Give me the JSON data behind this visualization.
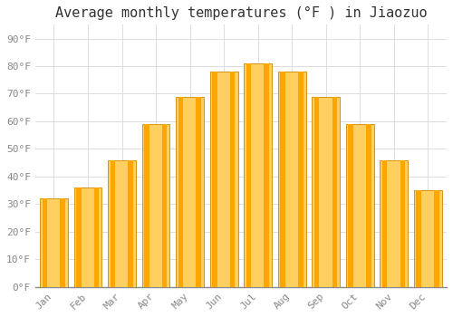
{
  "title": "Average monthly temperatures (°F ) in Jiaozuo",
  "months": [
    "Jan",
    "Feb",
    "Mar",
    "Apr",
    "May",
    "Jun",
    "Jul",
    "Aug",
    "Sep",
    "Oct",
    "Nov",
    "Dec"
  ],
  "values": [
    32,
    36,
    46,
    59,
    69,
    78,
    81,
    78,
    69,
    59,
    46,
    35
  ],
  "bar_color_face": "#FFA500",
  "bar_color_light": "#FFD060",
  "bar_color_edge": "#CC8800",
  "background_color": "#FFFFFF",
  "grid_color": "#DDDDDD",
  "ylim": [
    0,
    95
  ],
  "yticks": [
    0,
    10,
    20,
    30,
    40,
    50,
    60,
    70,
    80,
    90
  ],
  "title_fontsize": 11,
  "tick_fontsize": 8,
  "font_family": "monospace"
}
